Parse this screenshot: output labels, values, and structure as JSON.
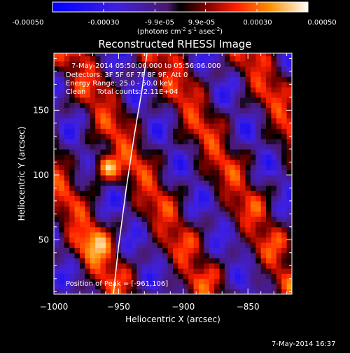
{
  "colorbar": {
    "ticks": [
      "-0.00050",
      "-0.00030",
      "-9.9e-05",
      "9.9e-05",
      "0.00030",
      "0.00050"
    ],
    "tick_values": [
      -0.0005,
      -0.0003,
      -9.9e-05,
      9.9e-05,
      0.0003,
      0.0005
    ],
    "range": [
      -0.0005,
      0.0005
    ],
    "units_parts": [
      "(photons cm",
      "-2",
      " s",
      "-1",
      " asec",
      "-2",
      ")"
    ]
  },
  "chart_data": {
    "type": "heatmap",
    "title": "Reconstructed RHESSI Image",
    "xlabel": "Heliocentric X (arcsec)",
    "ylabel": "Heliocentric Y (arcsec)",
    "xlim": [
      -1000,
      -816
    ],
    "ylim": [
      8,
      194
    ],
    "x_ticks": [
      -1000,
      -950,
      -900,
      -850
    ],
    "x_tick_labels": [
      "−1000",
      "−950",
      "−900",
      "−850"
    ],
    "y_ticks": [
      50,
      100,
      150
    ],
    "y_tick_labels": [
      "50",
      "100",
      "150"
    ],
    "annotations": [
      "7-May-2014 05:50:06.000 to 05:56:06.000",
      "Detectors: 3F 5F 6F 7F 8F 9F, Att 0",
      "Energy Range: 25.0 - 50.0 keV",
      "Clean     Total counts: 2.11E+04"
    ],
    "peak_label": "Position of Peak = [-961,106]",
    "peak": [
      -961,
      106
    ],
    "limb_curve": [
      [
        -954,
        8
      ],
      [
        -950,
        45
      ],
      [
        -944,
        90
      ],
      [
        -938,
        130
      ],
      [
        -932,
        165
      ],
      [
        -928,
        194
      ]
    ]
  },
  "footer": {
    "timestamp": "7-May-2014 16:37"
  }
}
